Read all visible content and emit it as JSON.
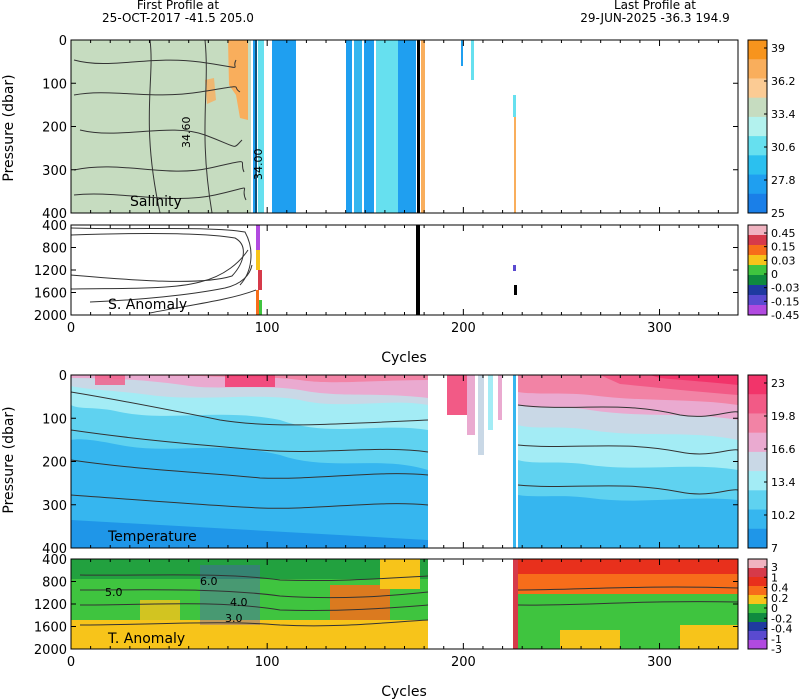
{
  "header": {
    "first_title": "First Profile at",
    "first_detail": "25-OCT-2017   -41.5  205.0",
    "last_title": "Last Profile at",
    "last_detail": "29-JUN-2025   -36.3  194.9"
  },
  "chart_data": [
    {
      "type": "heatmap",
      "title": "Salinity",
      "xlabel": "",
      "ylabel": "Pressure (dbar)",
      "xlim": [
        0,
        340
      ],
      "ylim": [
        400,
        0
      ],
      "y_ticks": [
        0,
        100,
        200,
        300,
        400
      ],
      "colorbar_labels": [
        "39",
        "36.2",
        "33.4",
        "30.6",
        "27.8",
        "25"
      ],
      "colorbar_colors": [
        "#f7941d",
        "#f9ae5c",
        "#fbcb94",
        "#c6dcc0",
        "#b3f2ee",
        "#66e0ef",
        "#2bc0ef",
        "#1f9ff0",
        "#1a7fe8"
      ],
      "contour_labels": [
        "34.60",
        "34.00"
      ],
      "colors": {
        "background": "#c6dcc0",
        "warm": "#f9ae5c",
        "blue": "#1f9ff0",
        "light": "#66e0ef",
        "contour": "#000000"
      }
    },
    {
      "type": "heatmap",
      "title": "S. Anomaly",
      "xlabel": "Cycles",
      "ylabel": "",
      "xlim": [
        0,
        340
      ],
      "ylim": [
        2000,
        400
      ],
      "x_ticks": [
        0,
        100,
        200,
        300
      ],
      "y_ticks": [
        400,
        800,
        1200,
        1600,
        2000
      ],
      "colorbar_labels": [
        "0.45",
        "0.15",
        "0.03",
        "0",
        "-0.03",
        "-0.15",
        "-0.45"
      ],
      "colorbar_colors": [
        "#f0b3c0",
        "#d63a4a",
        "#f76d1a",
        "#f7c41a",
        "#3fc43f",
        "#0f8a3f",
        "#1f3aa0",
        "#5a4ad0",
        "#b14ae0"
      ]
    },
    {
      "type": "heatmap",
      "title": "Temperature",
      "xlabel": "",
      "ylabel": "Pressure (dbar)",
      "xlim": [
        0,
        340
      ],
      "ylim": [
        400,
        0
      ],
      "y_ticks": [
        0,
        100,
        200,
        300,
        400
      ],
      "colorbar_labels": [
        "23",
        "19.8",
        "16.6",
        "13.4",
        "10.2",
        "7"
      ],
      "colorbar_colors": [
        "#f2346a",
        "#f25a86",
        "#f283a5",
        "#eaaad0",
        "#c9d8e6",
        "#a3ecf5",
        "#5fd2f0",
        "#36b6ef",
        "#1f96e8"
      ],
      "gap_cycles": [
        182,
        228
      ]
    },
    {
      "type": "heatmap",
      "title": "T. Anomaly",
      "xlabel": "Cycles",
      "ylabel": "",
      "xlim": [
        0,
        340
      ],
      "ylim": [
        2000,
        400
      ],
      "x_ticks": [
        0,
        100,
        200,
        300
      ],
      "y_ticks": [
        400,
        800,
        1200,
        1600,
        2000
      ],
      "colorbar_labels": [
        "3",
        "1",
        "0.4",
        "0.2",
        "0",
        "-0.2",
        "-0.4",
        "-1",
        "-3"
      ],
      "colorbar_colors": [
        "#f0b3c0",
        "#d63a4a",
        "#e8301c",
        "#f76d1a",
        "#f7c41a",
        "#3fc43f",
        "#0f8a3f",
        "#1f3aa0",
        "#5a4ad0",
        "#b14ae0"
      ],
      "contour_labels": [
        "5.0",
        "4.0",
        "6.0",
        "3.0"
      ]
    }
  ]
}
